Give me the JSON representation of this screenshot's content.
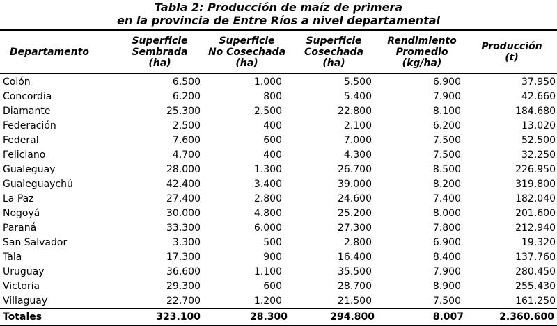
{
  "title": {
    "line1": "Tabla 2: Producción de maíz de primera",
    "line2": "en la provincia de Entre Ríos a nivel departamental"
  },
  "headers": [
    [
      "Departamento"
    ],
    [
      "Superficie",
      "Sembrada",
      "(ha)"
    ],
    [
      "Superficie",
      "No Cosechada",
      "(ha)"
    ],
    [
      "Superficie",
      "Cosechada",
      "(ha)"
    ],
    [
      "Rendimiento",
      "Promedio",
      "(kg/ha)"
    ],
    [
      "Producción",
      "(t)"
    ]
  ],
  "rows": [
    [
      "Colón",
      "6.500",
      "1.000",
      "5.500",
      "6.900",
      "37.950"
    ],
    [
      "Concordia",
      "6.200",
      "800",
      "5.400",
      "7.900",
      "42.660"
    ],
    [
      "Diamante",
      "25.300",
      "2.500",
      "22.800",
      "8.100",
      "184.680"
    ],
    [
      "Federación",
      "2.500",
      "400",
      "2.100",
      "6.200",
      "13.020"
    ],
    [
      "Federal",
      "7.600",
      "600",
      "7.000",
      "7.500",
      "52.500"
    ],
    [
      "Feliciano",
      "4.700",
      "400",
      "4.300",
      "7.500",
      "32.250"
    ],
    [
      "Gualeguay",
      "28.000",
      "1.300",
      "26.700",
      "8.500",
      "226.950"
    ],
    [
      "Gualeguaychú",
      "42.400",
      "3.400",
      "39.000",
      "8.200",
      "319.800"
    ],
    [
      "La Paz",
      "27.400",
      "2.800",
      "24.600",
      "7.400",
      "182.040"
    ],
    [
      "Nogoyá",
      "30.000",
      "4.800",
      "25.200",
      "8.000",
      "201.600"
    ],
    [
      "Paraná",
      "33.300",
      "6.000",
      "27.300",
      "7.800",
      "212.940"
    ],
    [
      "San Salvador",
      "3.300",
      "500",
      "2.800",
      "6.900",
      "19.320"
    ],
    [
      "Tala",
      "17.300",
      "900",
      "16.400",
      "8.400",
      "137.760"
    ],
    [
      "Uruguay",
      "36.600",
      "1.100",
      "35.500",
      "7.900",
      "280.450"
    ],
    [
      "Victoria",
      "29.300",
      "600",
      "28.700",
      "8.900",
      "255.430"
    ],
    [
      "Villaguay",
      "22.700",
      "1.200",
      "21.500",
      "7.500",
      "161.250"
    ]
  ],
  "totals": [
    "Totales",
    "323.100",
    "28.300",
    "294.800",
    "8.007",
    "2.360.600"
  ]
}
